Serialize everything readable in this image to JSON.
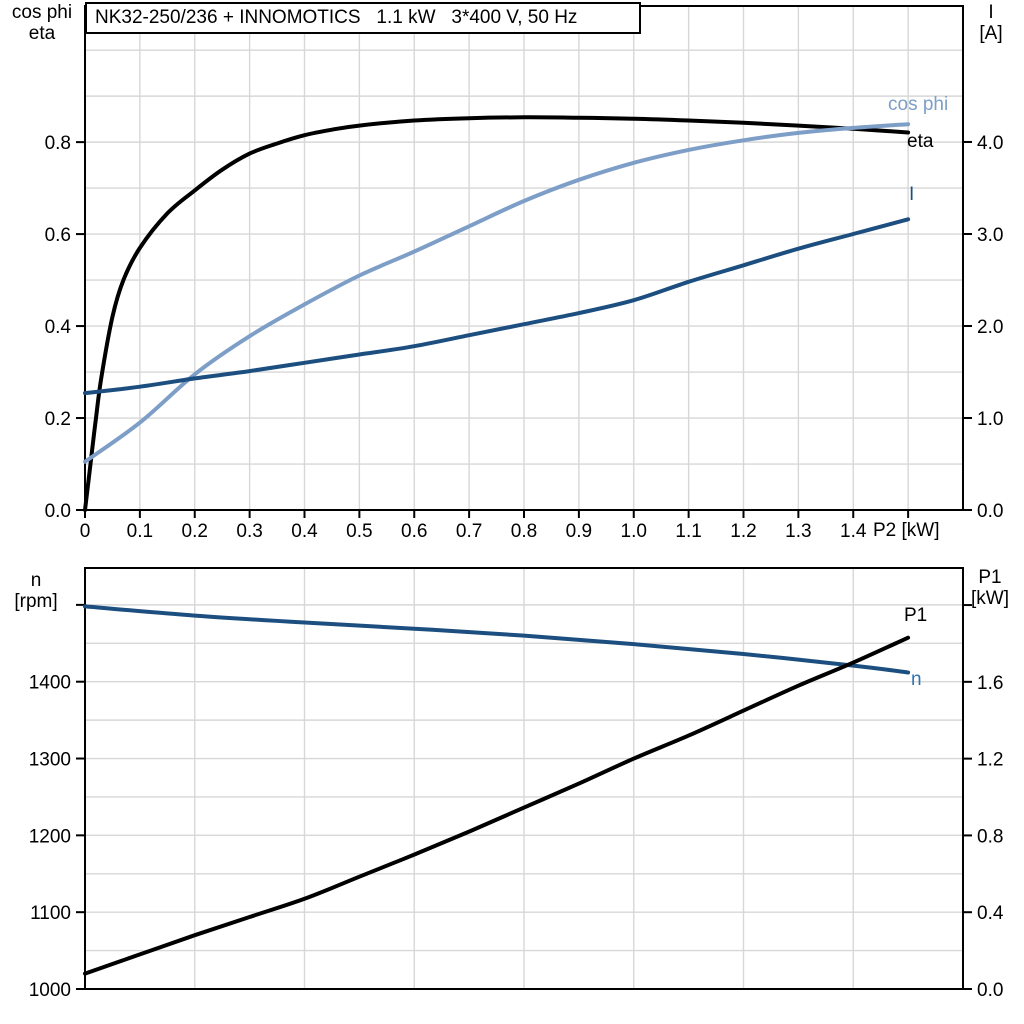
{
  "title": "NK32-250/236 + INNOMOTICS   1.1 kW   3*400 V, 50 Hz",
  "x_unit_label": "P2 [kW]",
  "corner_labels": {
    "top_left_1": "cos phi",
    "top_left_2": "eta",
    "top_right_1": "I",
    "top_right_2": "[A]",
    "bottom_left_1": "n",
    "bottom_left_2": "[rpm]",
    "bottom_right_1": "P1",
    "bottom_right_2": "[kW]"
  },
  "curve_labels": {
    "cos_phi": "cos phi",
    "eta": "eta",
    "current": "I",
    "p1": "P1",
    "n": "n"
  },
  "colors": {
    "eta_curve": "#000000",
    "cos_phi_curve": "#7d9ec7",
    "current_curve": "#1c4f7f",
    "p1_curve": "#000000",
    "n_curve": "#1c4f7f",
    "n_label": "#2e74b5",
    "grid": "#d7d7d7",
    "frame": "#000000"
  },
  "chart_data": [
    {
      "type": "line",
      "name": "efficiency-chart",
      "x": {
        "label": "P2 [kW]",
        "range": [
          0,
          1.6
        ],
        "grid_values": [
          0.1,
          0.2,
          0.3,
          0.4,
          0.5,
          0.6,
          0.7,
          0.8,
          0.9,
          1.0,
          1.1,
          1.2,
          1.3,
          1.4,
          1.5
        ],
        "ticks": [
          0,
          0.1,
          0.2,
          0.3,
          0.4,
          0.5,
          0.6,
          0.7,
          0.8,
          0.9,
          1.0,
          1.1,
          1.2,
          1.3,
          1.4,
          1.5
        ],
        "tick_labels": [
          "0",
          "0.1",
          "0.2",
          "0.3",
          "0.4",
          "0.5",
          "0.6",
          "0.7",
          "0.8",
          "0.9",
          "1.0",
          "1.1",
          "1.2",
          "1.3",
          "1.4",
          ""
        ]
      },
      "y_left": {
        "label": "cos phi / eta",
        "range": [
          0,
          1.096
        ],
        "grid_values": [
          0.1,
          0.2,
          0.3,
          0.4,
          0.5,
          0.6,
          0.7,
          0.8,
          0.9,
          1.0
        ],
        "ticks": [
          0,
          0.2,
          0.4,
          0.6,
          0.8
        ],
        "tick_labels": [
          "0.0",
          "0.2",
          "0.4",
          "0.6",
          "0.8"
        ]
      },
      "y_right": {
        "label": "I [A]",
        "range": [
          0,
          5.478
        ],
        "ticks": [
          0,
          1,
          2,
          3,
          4
        ],
        "tick_labels": [
          "0.0",
          "1.0",
          "2.0",
          "3.0",
          "4.0"
        ]
      },
      "series": [
        {
          "name": "eta",
          "axis": "left",
          "color": "#000000",
          "points": [
            [
              0,
              0
            ],
            [
              0.01,
              0.1
            ],
            [
              0.02,
              0.2
            ],
            [
              0.03,
              0.29
            ],
            [
              0.05,
              0.42
            ],
            [
              0.07,
              0.5
            ],
            [
              0.1,
              0.57
            ],
            [
              0.15,
              0.645
            ],
            [
              0.2,
              0.695
            ],
            [
              0.25,
              0.74
            ],
            [
              0.3,
              0.775
            ],
            [
              0.35,
              0.797
            ],
            [
              0.4,
              0.815
            ],
            [
              0.45,
              0.827
            ],
            [
              0.5,
              0.836
            ],
            [
              0.6,
              0.847
            ],
            [
              0.7,
              0.852
            ],
            [
              0.8,
              0.854
            ],
            [
              0.9,
              0.853
            ],
            [
              1.0,
              0.851
            ],
            [
              1.1,
              0.847
            ],
            [
              1.2,
              0.842
            ],
            [
              1.3,
              0.836
            ],
            [
              1.4,
              0.829
            ],
            [
              1.5,
              0.821
            ]
          ]
        },
        {
          "name": "cos_phi",
          "axis": "left",
          "color": "#7d9ec7",
          "points": [
            [
              0,
              0.105
            ],
            [
              0.1,
              0.19
            ],
            [
              0.2,
              0.295
            ],
            [
              0.3,
              0.378
            ],
            [
              0.4,
              0.447
            ],
            [
              0.5,
              0.51
            ],
            [
              0.6,
              0.562
            ],
            [
              0.7,
              0.617
            ],
            [
              0.8,
              0.672
            ],
            [
              0.9,
              0.718
            ],
            [
              1.0,
              0.755
            ],
            [
              1.1,
              0.783
            ],
            [
              1.2,
              0.804
            ],
            [
              1.3,
              0.82
            ],
            [
              1.4,
              0.831
            ],
            [
              1.5,
              0.839
            ]
          ]
        },
        {
          "name": "I",
          "axis": "right",
          "color": "#1c4f7f",
          "points": [
            [
              0,
              1.27
            ],
            [
              0.1,
              1.34
            ],
            [
              0.2,
              1.43
            ],
            [
              0.3,
              1.51
            ],
            [
              0.4,
              1.6
            ],
            [
              0.5,
              1.69
            ],
            [
              0.6,
              1.78
            ],
            [
              0.7,
              1.9
            ],
            [
              0.8,
              2.02
            ],
            [
              0.9,
              2.14
            ],
            [
              1.0,
              2.28
            ],
            [
              1.1,
              2.48
            ],
            [
              1.2,
              2.66
            ],
            [
              1.3,
              2.84
            ],
            [
              1.4,
              3.0
            ],
            [
              1.5,
              3.16
            ]
          ]
        }
      ]
    },
    {
      "type": "line",
      "name": "speed-power-chart",
      "x": {
        "label": "P2 [kW]",
        "range": [
          0,
          1.6
        ],
        "grid_values": [
          0.2,
          0.4,
          0.6,
          0.8,
          1.0,
          1.2,
          1.4
        ],
        "ticks": [],
        "tick_labels": []
      },
      "y_left": {
        "label": "n [rpm]",
        "range": [
          1000,
          1548
        ],
        "grid_values": [
          1050,
          1100,
          1150,
          1200,
          1250,
          1300,
          1350,
          1400,
          1450,
          1500
        ],
        "ticks": [
          1000,
          1100,
          1200,
          1300,
          1400,
          1500
        ],
        "tick_labels": [
          "1000",
          "1100",
          "1200",
          "1300",
          "1400",
          ""
        ]
      },
      "y_right": {
        "label": "P1 [kW]",
        "range": [
          0,
          2.193
        ],
        "ticks": [
          0,
          0.4,
          0.8,
          1.2,
          1.6,
          2.0
        ],
        "tick_labels": [
          "0.0",
          "0.4",
          "0.8",
          "1.2",
          "1.6",
          ""
        ]
      },
      "series": [
        {
          "name": "n",
          "axis": "left",
          "color": "#1c4f7f",
          "points": [
            [
              0,
              1498
            ],
            [
              0.2,
              1486
            ],
            [
              0.4,
              1477
            ],
            [
              0.6,
              1469
            ],
            [
              0.8,
              1460
            ],
            [
              1.0,
              1449
            ],
            [
              1.2,
              1436
            ],
            [
              1.4,
              1421
            ],
            [
              1.5,
              1412
            ]
          ]
        },
        {
          "name": "P1",
          "axis": "right",
          "color": "#000000",
          "points": [
            [
              0,
              0.08
            ],
            [
              0.1,
              0.18
            ],
            [
              0.2,
              0.28
            ],
            [
              0.3,
              0.375
            ],
            [
              0.4,
              0.47
            ],
            [
              0.5,
              0.585
            ],
            [
              0.6,
              0.7
            ],
            [
              0.7,
              0.82
            ],
            [
              0.8,
              0.945
            ],
            [
              0.9,
              1.07
            ],
            [
              1.0,
              1.2
            ],
            [
              1.1,
              1.32
            ],
            [
              1.2,
              1.45
            ],
            [
              1.3,
              1.58
            ],
            [
              1.4,
              1.7
            ],
            [
              1.5,
              1.83
            ]
          ]
        }
      ]
    }
  ]
}
